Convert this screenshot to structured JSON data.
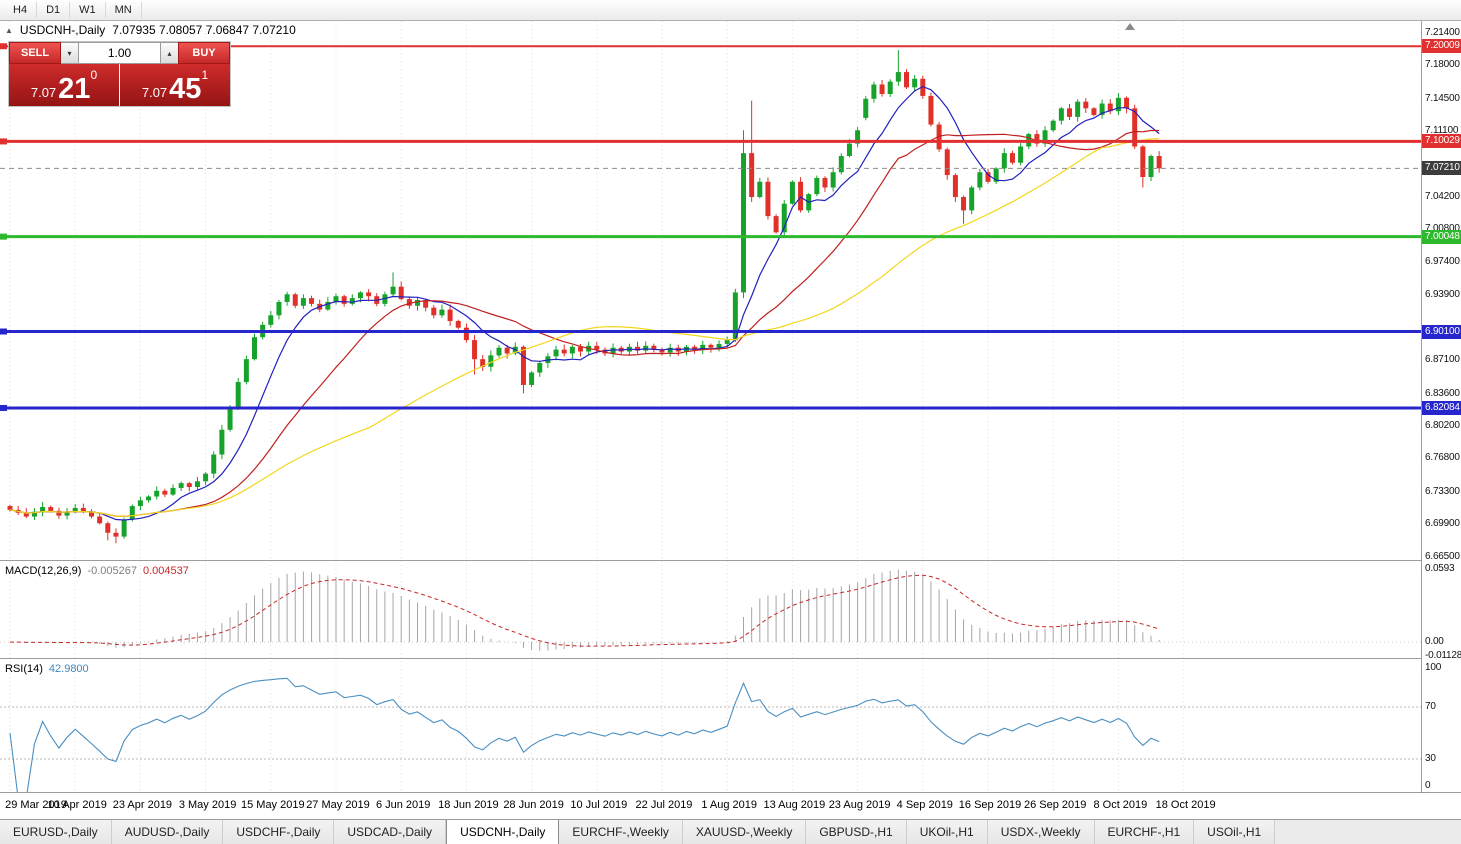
{
  "toolbar": {
    "timeframes": [
      {
        "label": "H4"
      },
      {
        "label": "D1"
      },
      {
        "label": "W1"
      },
      {
        "label": "MN"
      }
    ]
  },
  "chart_header": {
    "collapse_icon": "▲",
    "symbol": "USDCNH-,Daily",
    "ohlc": "7.07935 7.08057 7.06847 7.07210"
  },
  "trade_panel": {
    "sell_label": "SELL",
    "buy_label": "BUY",
    "volume": "1.00",
    "spin_down_icon": "▾",
    "spin_up_icon": "▴",
    "sell_price": {
      "prefix": "7.07",
      "pips": "21",
      "fraction": "0"
    },
    "buy_price": {
      "prefix": "7.07",
      "pips": "45",
      "fraction": "1"
    }
  },
  "indicators": {
    "macd_label": "MACD(12,26,9)",
    "macd_value": "-0.005267",
    "macd_signal_value": "0.004537",
    "rsi_label": "RSI(14)",
    "rsi_value": "42.9800"
  },
  "axis": {
    "price_ticks": [
      "7.21400",
      "7.18000",
      "7.14500",
      "7.11100",
      "7.04200",
      "7.00800",
      "6.97400",
      "6.93900",
      "6.87100",
      "6.83600",
      "6.80200",
      "6.76800",
      "6.73300",
      "6.69900",
      "6.66500"
    ],
    "macd_ticks": [
      "0.0593",
      "0.00",
      "-0.01128"
    ],
    "rsi_ticks": [
      "100",
      "70",
      "30",
      "0"
    ]
  },
  "levels": [
    {
      "price": 7.20009,
      "tag": "7.20009",
      "color": "#e03030",
      "width": 2,
      "style": "solid"
    },
    {
      "price": 7.10029,
      "tag": "7.10029",
      "color": "#e03030",
      "width": 3,
      "style": "solid"
    },
    {
      "price": 7.00048,
      "tag": "7.00048",
      "color": "#2eb82e",
      "width": 3,
      "style": "solid"
    },
    {
      "price": 6.901,
      "tag": "6.90100",
      "color": "#2626cc",
      "width": 3,
      "style": "solid"
    },
    {
      "price": 6.82084,
      "tag": "6.82084",
      "color": "#2626cc",
      "width": 3,
      "style": "solid"
    },
    {
      "price": 7.0721,
      "tag": "7.07210",
      "color": "#8c8c8c",
      "width": 1,
      "style": "dash",
      "tag_color": "#3d3d3d",
      "handle": false
    }
  ],
  "tabs": [
    {
      "label": "EURUSD-,Daily"
    },
    {
      "label": "AUDUSD-,Daily"
    },
    {
      "label": "USDCHF-,Daily"
    },
    {
      "label": "USDCAD-,Daily"
    },
    {
      "label": "USDCNH-,Daily",
      "active": true
    },
    {
      "label": "EURCHF-,Weekly"
    },
    {
      "label": "XAUUSD-,Weekly"
    },
    {
      "label": "GBPUSD-,H1"
    },
    {
      "label": "UKOil-,H1"
    },
    {
      "label": "USDX-,Weekly"
    },
    {
      "label": "EURCHF-,H1"
    },
    {
      "label": "USOil-,H1"
    }
  ],
  "chart_data": {
    "type": "candlestick",
    "title": "USDCNH-,Daily",
    "x_axis_dates": [
      "29 Mar 2019",
      "10 Apr 2019",
      "23 Apr 2019",
      "3 May 2019",
      "15 May 2019",
      "27 May 2019",
      "6 Jun 2019",
      "18 Jun 2019",
      "28 Jun 2019",
      "10 Jul 2019",
      "22 Jul 2019",
      "1 Aug 2019",
      "13 Aug 2019",
      "23 Aug 2019",
      "4 Sep 2019",
      "16 Sep 2019",
      "26 Sep 2019",
      "8 Oct 2019",
      "18 Oct 2019"
    ],
    "label_slot_step": 8,
    "price_range": {
      "top": 7.2255,
      "bottom": 6.6625
    },
    "first_open": 6.718,
    "closes": [
      6.714,
      6.711,
      6.707,
      6.712,
      6.717,
      6.713,
      6.708,
      6.712,
      6.716,
      6.712,
      6.707,
      6.7,
      6.69,
      6.686,
      6.704,
      6.718,
      6.724,
      6.728,
      6.734,
      6.73,
      6.737,
      6.742,
      6.738,
      6.744,
      6.752,
      6.772,
      6.798,
      6.822,
      6.848,
      6.872,
      6.895,
      6.908,
      6.918,
      6.932,
      6.94,
      6.928,
      6.936,
      6.93,
      6.924,
      6.932,
      6.938,
      6.93,
      6.936,
      6.942,
      6.938,
      6.93,
      6.94,
      6.948,
      6.935,
      6.928,
      6.934,
      6.926,
      6.918,
      6.924,
      6.912,
      6.905,
      6.892,
      6.872,
      6.864,
      6.876,
      6.884,
      6.878,
      6.885,
      6.845,
      6.858,
      6.868,
      6.875,
      6.882,
      6.878,
      6.885,
      6.88,
      6.886,
      6.882,
      6.878,
      6.884,
      6.88,
      6.885,
      6.881,
      6.886,
      6.882,
      6.879,
      6.884,
      6.88,
      6.885,
      6.882,
      6.887,
      6.884,
      6.888,
      6.892,
      6.942,
      7.088,
      7.042,
      7.058,
      7.022,
      7.005,
      7.035,
      7.058,
      7.028,
      7.045,
      7.062,
      7.052,
      7.068,
      7.085,
      7.098,
      7.112,
      7.145,
      7.16,
      7.15,
      7.163,
      7.173,
      7.157,
      7.166,
      7.148,
      7.118,
      7.092,
      7.065,
      7.042,
      7.028,
      7.052,
      7.068,
      7.058,
      7.072,
      7.088,
      7.078,
      7.095,
      7.108,
      7.098,
      7.112,
      7.122,
      7.135,
      7.126,
      7.142,
      7.135,
      7.128,
      7.14,
      7.132,
      7.146,
      7.135,
      7.095,
      7.063,
      7.085,
      7.0721
    ],
    "overrides": {
      "12": {
        "l": 6.682
      },
      "13": {
        "l": 6.679
      },
      "47": {
        "h": 6.963
      },
      "57": {
        "l": 6.856
      },
      "63": {
        "l": 6.836
      },
      "90": {
        "h": 7.112,
        "l": 6.936
      },
      "91": {
        "h": 7.143
      },
      "105": {
        "o": 7.125
      },
      "109": {
        "h": 7.196
      },
      "117": {
        "l": 7.014
      },
      "139": {
        "l": 7.052
      }
    },
    "moving_averages": [
      {
        "period": 8,
        "color": "#2020c0"
      },
      {
        "period": 20,
        "color": "#c02020"
      },
      {
        "period": 45,
        "color": "#f2d71c"
      }
    ],
    "macd": {
      "fast": 12,
      "slow": 26,
      "signal": 9,
      "range": [
        -0.0113,
        0.0593
      ]
    },
    "rsi": {
      "period": 14,
      "levels": [
        70,
        30
      ],
      "range": [
        0,
        100
      ]
    },
    "colors": {
      "up": "#17a22b",
      "down": "#e03028",
      "macd_hist": "#a6a6a6",
      "macd_signal": "#c62828",
      "rsi_line": "#4a8fc2"
    }
  }
}
